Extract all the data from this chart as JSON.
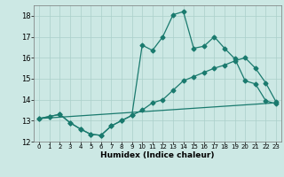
{
  "xlabel": "Humidex (Indice chaleur)",
  "bg_color": "#cce8e4",
  "grid_color": "#aacfca",
  "line_color": "#1a7a6e",
  "xlim": [
    -0.5,
    23.5
  ],
  "ylim": [
    12,
    18.5
  ],
  "yticks": [
    12,
    13,
    14,
    15,
    16,
    17,
    18
  ],
  "xticks": [
    0,
    1,
    2,
    3,
    4,
    5,
    6,
    7,
    8,
    9,
    10,
    11,
    12,
    13,
    14,
    15,
    16,
    17,
    18,
    19,
    20,
    21,
    22,
    23
  ],
  "line1_x": [
    0,
    1,
    2,
    3,
    4,
    5,
    6,
    7,
    8,
    9,
    10,
    11,
    12,
    13,
    14,
    15,
    16,
    17,
    18,
    19,
    20,
    21,
    22,
    23
  ],
  "line1_y": [
    13.1,
    13.2,
    13.3,
    12.9,
    12.6,
    12.35,
    12.3,
    12.75,
    13.0,
    13.25,
    13.5,
    13.85,
    14.0,
    14.45,
    14.9,
    15.1,
    15.3,
    15.5,
    15.65,
    15.85,
    16.0,
    15.5,
    14.8,
    13.9
  ],
  "line2_x": [
    0,
    1,
    2,
    3,
    4,
    5,
    6,
    7,
    8,
    9,
    10,
    11,
    12,
    13,
    14,
    15,
    16,
    17,
    18,
    19,
    20,
    21,
    22,
    23
  ],
  "line2_y": [
    13.1,
    13.2,
    13.3,
    12.9,
    12.6,
    12.35,
    12.3,
    12.75,
    13.0,
    13.25,
    16.6,
    16.35,
    17.0,
    18.05,
    18.2,
    16.45,
    16.55,
    17.0,
    16.45,
    15.95,
    14.9,
    14.75,
    13.95,
    13.8
  ],
  "line3_x": [
    0,
    23
  ],
  "line3_y": [
    13.1,
    13.85
  ]
}
